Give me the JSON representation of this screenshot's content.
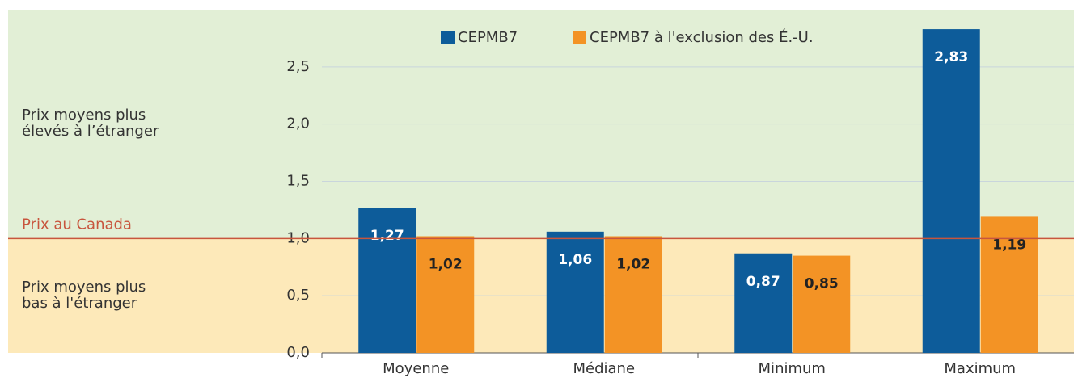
{
  "chart_data": {
    "type": "bar",
    "categories": [
      "Moyenne",
      "Médiane",
      "Minimum",
      "Maximum"
    ],
    "series": [
      {
        "name": "CEPMB7",
        "color": "#0d5c9a",
        "values": [
          1.27,
          1.06,
          0.87,
          2.83
        ],
        "value_labels": [
          "1,27",
          "1,06",
          "0,87",
          "2,83"
        ]
      },
      {
        "name": "CEPMB7 à l'exclusion des É.-U.",
        "color": "#f39325",
        "values": [
          1.02,
          1.02,
          0.85,
          1.19
        ],
        "value_labels": [
          "1,02",
          "1,02",
          "0,85",
          "1,19"
        ]
      }
    ],
    "ylim": [
      0,
      3
    ],
    "yticks": [
      {
        "value": 0,
        "label": "0,0"
      },
      {
        "value": 0.5,
        "label": "0,5"
      },
      {
        "value": 1,
        "label": "1,0"
      },
      {
        "value": 1.5,
        "label": "1,5"
      },
      {
        "value": 2,
        "label": "2,0"
      },
      {
        "value": 2.5,
        "label": "2,5"
      }
    ],
    "grid": true,
    "reference_line": {
      "value": 1,
      "label": "Prix au Canada",
      "color": "#c8553d"
    },
    "annotations": {
      "above": [
        "Prix moyens plus",
        "élevés à l’étranger"
      ],
      "below": [
        "Prix moyens plus",
        "bas à l'étranger"
      ]
    },
    "background": {
      "above": "#e2efd6",
      "below": "#fde9b9"
    },
    "legend": "top"
  }
}
